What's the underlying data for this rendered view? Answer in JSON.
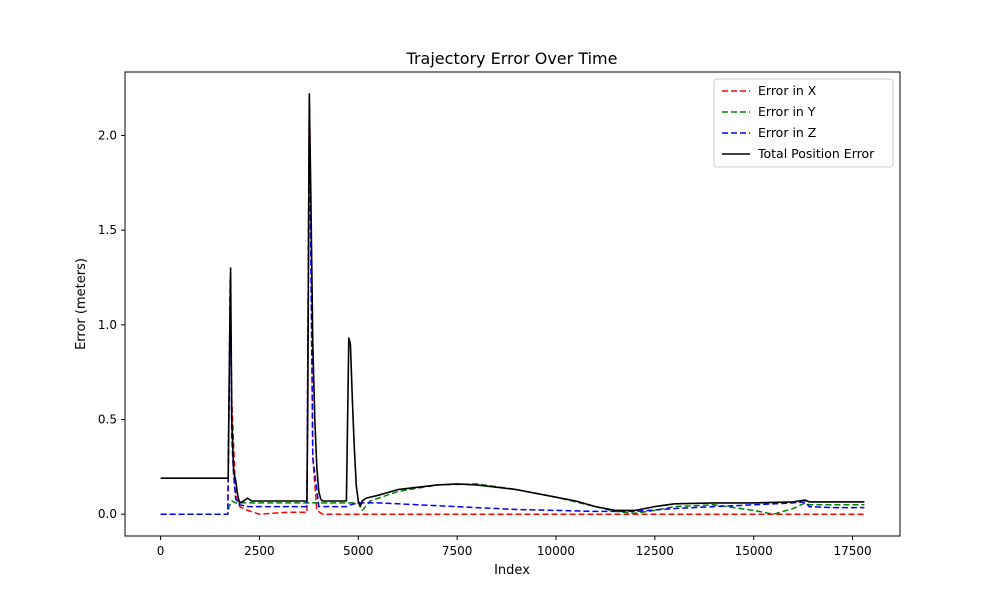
{
  "chart_data": {
    "type": "line",
    "title": "Trajectory Error Over Time",
    "xlabel": "Index",
    "ylabel": "Error (meters)",
    "xlim": [
      -900,
      18700
    ],
    "ylim": [
      -0.115,
      2.335
    ],
    "xticks": [
      0,
      2500,
      5000,
      7500,
      10000,
      12500,
      15000,
      17500
    ],
    "xtick_labels": [
      "0",
      "2500",
      "5000",
      "7500",
      "10000",
      "12500",
      "15000",
      "17500"
    ],
    "yticks": [
      0.0,
      0.5,
      1.0,
      1.5,
      2.0
    ],
    "ytick_labels": [
      "0.0",
      "0.5",
      "1.0",
      "1.5",
      "2.0"
    ],
    "grid": false,
    "legend_position": "top-right",
    "series": [
      {
        "name": "Error in X",
        "color": "#ff0000",
        "dash": "dashed",
        "x": [
          0,
          1700,
          1730,
          1760,
          1800,
          1900,
          2000,
          2200,
          2500,
          2800,
          3200,
          3700,
          3760,
          3800,
          3850,
          3950,
          4100,
          4200,
          4800,
          5000,
          7000,
          10000,
          12500,
          15000,
          17800
        ],
        "y": [
          0.0,
          0.0,
          0.6,
          1.2,
          0.6,
          0.1,
          0.04,
          0.02,
          0.0,
          0.005,
          0.01,
          0.01,
          2.2,
          1.6,
          0.3,
          0.02,
          0.0,
          0.0,
          0.0,
          0.0,
          0.0,
          0.0,
          0.0,
          0.0,
          0.0
        ]
      },
      {
        "name": "Error in Y",
        "color": "#008000",
        "dash": "dashed",
        "x": [
          0,
          1700,
          1730,
          1800,
          1900,
          2100,
          2500,
          3000,
          3700,
          4000,
          4500,
          5000,
          5100,
          5300,
          6000,
          7000,
          8000,
          9000,
          10000,
          11000,
          11500,
          12000,
          12500,
          13000,
          14000,
          15000,
          15500,
          16000,
          16300,
          16400,
          17800
        ],
        "y": [
          0.0,
          0.0,
          0.04,
          0.07,
          0.06,
          0.06,
          0.06,
          0.06,
          0.06,
          0.06,
          0.06,
          0.06,
          0.02,
          0.07,
          0.12,
          0.155,
          0.16,
          0.13,
          0.09,
          0.04,
          0.015,
          0.005,
          0.02,
          0.04,
          0.05,
          0.02,
          0.0,
          0.03,
          0.06,
          0.05,
          0.05
        ]
      },
      {
        "name": "Error in Z",
        "color": "#0000ff",
        "dash": "dashed",
        "x": [
          0,
          1700,
          1730,
          1760,
          1800,
          1850,
          1900,
          2000,
          2200,
          2500,
          3000,
          3700,
          3760,
          3850,
          4000,
          4700,
          4800,
          5000,
          5500,
          6000,
          7000,
          8000,
          9000,
          10000,
          11000,
          12000,
          13000,
          14000,
          15000,
          16000,
          16300,
          16400,
          17000,
          17800
        ],
        "y": [
          0.0,
          0.0,
          0.6,
          1.25,
          0.4,
          0.2,
          0.08,
          0.05,
          0.04,
          0.04,
          0.04,
          0.04,
          2.15,
          0.3,
          0.04,
          0.04,
          0.05,
          0.06,
          0.06,
          0.055,
          0.045,
          0.035,
          0.025,
          0.02,
          0.015,
          0.015,
          0.03,
          0.04,
          0.05,
          0.06,
          0.065,
          0.04,
          0.035,
          0.035
        ]
      },
      {
        "name": "Total Position Error",
        "color": "#000000",
        "dash": "solid",
        "x": [
          0,
          1700,
          1710,
          1740,
          1770,
          1800,
          1850,
          1900,
          1950,
          2000,
          2100,
          2200,
          2300,
          2500,
          3000,
          3700,
          3720,
          3760,
          3800,
          3850,
          3900,
          3950,
          4000,
          4050,
          4100,
          4200,
          4700,
          4760,
          4800,
          4850,
          4900,
          4950,
          5000,
          5050,
          5100,
          5200,
          5500,
          6000,
          7000,
          7500,
          8000,
          9000,
          10000,
          10500,
          11000,
          11500,
          12000,
          12500,
          13000,
          14000,
          15000,
          16000,
          16300,
          16400,
          17000,
          17800
        ],
        "y": [
          0.19,
          0.19,
          0.19,
          0.8,
          1.3,
          0.5,
          0.22,
          0.18,
          0.1,
          0.06,
          0.07,
          0.085,
          0.07,
          0.07,
          0.07,
          0.07,
          0.5,
          2.22,
          1.7,
          0.9,
          0.5,
          0.25,
          0.12,
          0.08,
          0.07,
          0.07,
          0.07,
          0.93,
          0.9,
          0.6,
          0.35,
          0.15,
          0.07,
          0.04,
          0.07,
          0.085,
          0.1,
          0.13,
          0.155,
          0.16,
          0.155,
          0.13,
          0.09,
          0.07,
          0.04,
          0.02,
          0.02,
          0.04,
          0.055,
          0.06,
          0.06,
          0.065,
          0.075,
          0.065,
          0.065,
          0.065
        ]
      }
    ]
  }
}
